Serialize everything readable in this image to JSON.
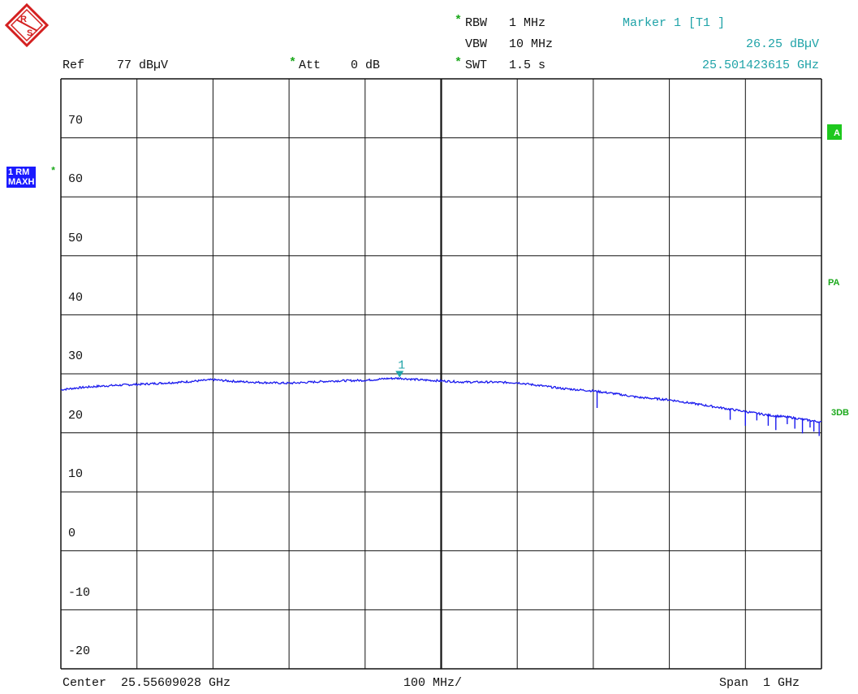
{
  "header": {
    "rbw_label": "RBW",
    "rbw_value": "1 MHz",
    "vbw_label": "VBW",
    "vbw_value": "10 MHz",
    "swt_label": "SWT",
    "swt_value": "1.5 s",
    "ref_label": "Ref",
    "ref_value": "77 dBµV",
    "att_label": "Att",
    "att_value": "0 dB",
    "marker_title": "Marker 1 [T1 ]",
    "marker_level": "26.25 dBµV",
    "marker_freq": "25.501423615 GHz",
    "star": "*"
  },
  "footer": {
    "center": "Center  25.55609028 GHz",
    "div": "100 MHz/",
    "span": "Span  1 GHz"
  },
  "trace_badge": {
    "line1": "1 RM",
    "line2": "MAXH"
  },
  "side_labels": {
    "a": "A",
    "pa": "PA",
    "3db": "3DB"
  },
  "y_axis": {
    "ticks": [
      "70",
      "60",
      "50",
      "40",
      "30",
      "20",
      "10",
      "0",
      "-10",
      "-20"
    ]
  },
  "marker": {
    "label": "1",
    "x_fraction": 0.4453,
    "level": 26.25
  },
  "colors": {
    "trace": "#1a1aee",
    "marker": "#1fa3a8",
    "grid": "#111111",
    "accent_green": "#1ec81e"
  },
  "chart_data": {
    "type": "line",
    "x_center_ghz": 25.55609028,
    "span_ghz": 1.0,
    "ylim": [
      -23,
      77
    ],
    "y_unit": "dBµV",
    "trace_x_fraction": [
      0.0,
      0.02,
      0.05,
      0.08,
      0.1,
      0.13,
      0.16,
      0.2,
      0.23,
      0.27,
      0.3,
      0.33,
      0.36,
      0.4,
      0.43,
      0.4453,
      0.47,
      0.5,
      0.53,
      0.56,
      0.6,
      0.63,
      0.66,
      0.7,
      0.73,
      0.76,
      0.8,
      0.83,
      0.86,
      0.9,
      0.93,
      0.96,
      1.0
    ],
    "trace_values": [
      24.3,
      24.6,
      24.9,
      25.1,
      25.2,
      25.4,
      25.6,
      26.0,
      25.7,
      25.5,
      25.4,
      25.6,
      25.8,
      25.9,
      26.2,
      26.25,
      26.0,
      25.8,
      25.6,
      25.6,
      25.5,
      25.0,
      24.5,
      24.1,
      23.6,
      23.0,
      22.6,
      22.0,
      21.4,
      20.6,
      20.0,
      19.6,
      18.8
    ]
  }
}
